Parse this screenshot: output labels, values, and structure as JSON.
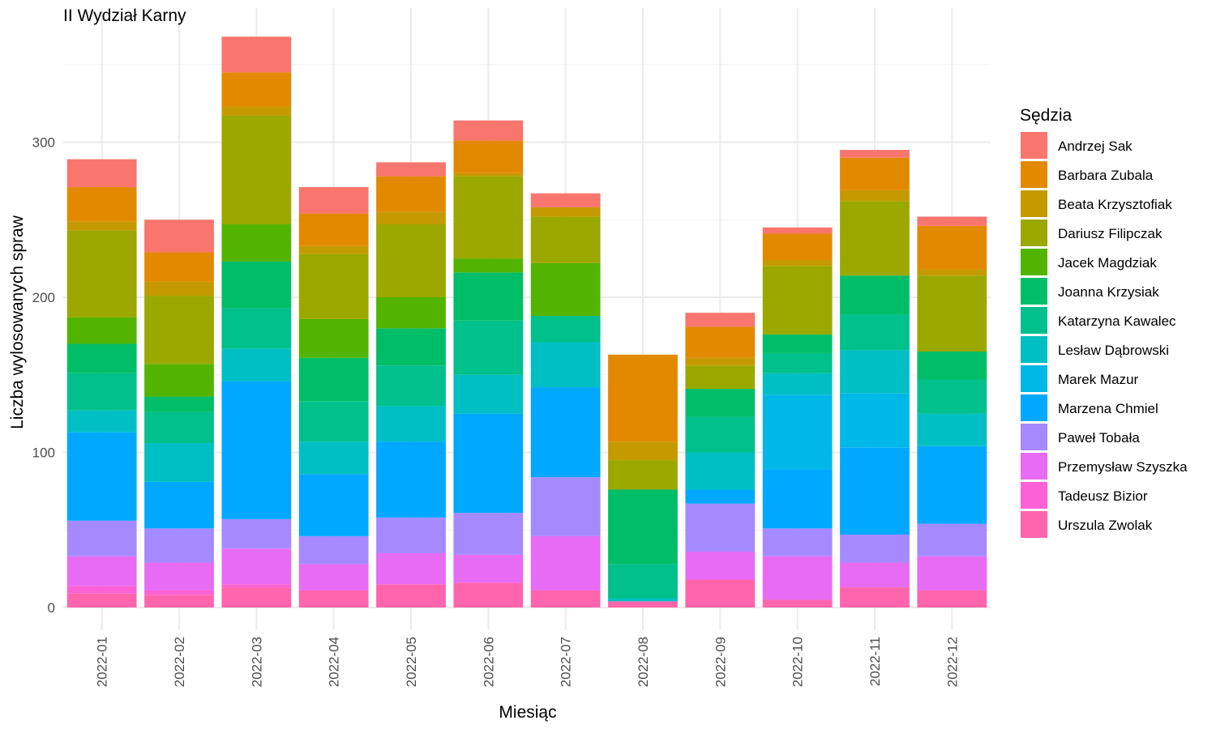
{
  "chart_data": {
    "type": "bar",
    "stacked": true,
    "title": "II Wydział Karny",
    "xlabel": "Miesiąc",
    "ylabel": "Liczba wylosowanych spraw",
    "ylim": [
      0,
      370
    ],
    "yticks": [
      0,
      100,
      200,
      300
    ],
    "grid": true,
    "legend_title": "Sędzia",
    "legend_position": "right",
    "categories": [
      "2022-01",
      "2022-02",
      "2022-03",
      "2022-04",
      "2022-05",
      "2022-06",
      "2022-07",
      "2022-08",
      "2022-09",
      "2022-10",
      "2022-11",
      "2022-12"
    ],
    "series": [
      {
        "name": "Urszula Zwolak",
        "color": "#FF65AC",
        "values": [
          9,
          8,
          13,
          11,
          15,
          16,
          11,
          4,
          18,
          5,
          13,
          11
        ]
      },
      {
        "name": "Tadeusz Bizior",
        "color": "#FC61D5",
        "values": [
          5,
          3,
          2,
          0,
          0,
          0,
          0,
          0,
          0,
          0,
          0,
          0
        ]
      },
      {
        "name": "Przemysław Szyszka",
        "color": "#E76BF3",
        "values": [
          19,
          18,
          23,
          17,
          20,
          18,
          35,
          0,
          18,
          28,
          16,
          22
        ]
      },
      {
        "name": "Paweł Tobała",
        "color": "#A58AFF",
        "values": [
          23,
          22,
          19,
          18,
          23,
          27,
          38,
          0,
          31,
          18,
          18,
          21
        ]
      },
      {
        "name": "Marzena Chmiel",
        "color": "#00A9FF",
        "values": [
          57,
          30,
          89,
          40,
          49,
          64,
          58,
          0,
          9,
          38,
          56,
          50
        ]
      },
      {
        "name": "Marek Mazur",
        "color": "#00B8E7",
        "values": [
          0,
          0,
          0,
          0,
          0,
          0,
          0,
          0,
          0,
          48,
          35,
          0
        ]
      },
      {
        "name": "Lesław Dąbrowski",
        "color": "#00BFC4",
        "values": [
          14,
          25,
          21,
          21,
          23,
          25,
          29,
          2,
          24,
          14,
          28,
          21
        ]
      },
      {
        "name": "Katarzyna Kawalec",
        "color": "#00C08B",
        "values": [
          24,
          20,
          26,
          26,
          26,
          35,
          17,
          22,
          23,
          13,
          23,
          22
        ]
      },
      {
        "name": "Joanna Krzysiak",
        "color": "#00BE67",
        "values": [
          19,
          10,
          30,
          28,
          24,
          31,
          0,
          48,
          18,
          12,
          25,
          18
        ]
      },
      {
        "name": "Jacek Magdziak",
        "color": "#53B400",
        "values": [
          17,
          21,
          24,
          25,
          20,
          9,
          34,
          0,
          0,
          0,
          0,
          0
        ]
      },
      {
        "name": "Dariusz Filipczak",
        "color": "#9AA800",
        "values": [
          56,
          44,
          70,
          42,
          47,
          53,
          30,
          19,
          15,
          44,
          48,
          49
        ]
      },
      {
        "name": "Beata Krzysztofiak",
        "color": "#C49A00",
        "values": [
          6,
          9,
          6,
          5,
          8,
          2,
          6,
          12,
          5,
          4,
          7,
          4
        ]
      },
      {
        "name": "Barbara Zubala",
        "color": "#E38900",
        "values": [
          22,
          19,
          22,
          21,
          23,
          21,
          0,
          56,
          20,
          17,
          21,
          28
        ]
      },
      {
        "name": "Andrzej Sak",
        "color": "#F8766D",
        "values": [
          18,
          21,
          23,
          17,
          9,
          13,
          9,
          0,
          9,
          4,
          5,
          6
        ]
      }
    ],
    "legend_order": [
      "Andrzej Sak",
      "Barbara Zubala",
      "Beata Krzysztofiak",
      "Dariusz Filipczak",
      "Jacek Magdziak",
      "Joanna Krzysiak",
      "Katarzyna Kawalec",
      "Lesław Dąbrowski",
      "Marek Mazur",
      "Marzena Chmiel",
      "Paweł Tobała",
      "Przemysław Szyszka",
      "Tadeusz Bizior",
      "Urszula Zwolak"
    ]
  }
}
